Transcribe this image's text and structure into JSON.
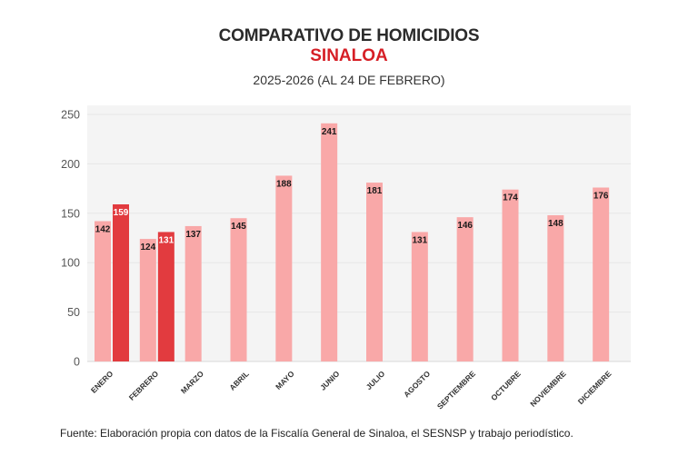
{
  "header": {
    "title": "COMPARATIVO DE HOMICIDIOS",
    "region": "SINALOA",
    "period": "2025-2026 (AL 24 DE FEBRERO)"
  },
  "footer": {
    "source": "Fuente: Elaboración propia con datos de la Fiscalía General de Sinaloa, el SESNSP y trabajo periodístico."
  },
  "colors": {
    "series_2025": "#f9a8a8",
    "series_2026": "#e23b3f",
    "plot_bg": "#f4f4f4",
    "grid": "#e6e6e6",
    "region_title": "#d61f26"
  },
  "chart_data": {
    "type": "bar",
    "title": "COMPARATIVO DE HOMICIDIOS",
    "subtitle": "SINALOA — 2025-2026 (AL 24 DE FEBRERO)",
    "xlabel": "",
    "ylabel": "",
    "ylim": [
      0,
      250
    ],
    "yticks": [
      0,
      50,
      100,
      150,
      200,
      250
    ],
    "grid": true,
    "legend": "none",
    "categories": [
      "ENERO",
      "FEBRERO",
      "MARZO",
      "ABRIL",
      "MAYO",
      "JUNIO",
      "JULIO",
      "AGOSTO",
      "SEPTIEMBRE",
      "OCTUBRE",
      "NOVIEMBRE",
      "DICIEMBRE"
    ],
    "series": [
      {
        "name": "2025",
        "values": [
          142,
          124,
          137,
          145,
          188,
          241,
          181,
          131,
          146,
          174,
          148,
          176
        ]
      },
      {
        "name": "2026",
        "values": [
          159,
          131,
          null,
          null,
          null,
          null,
          null,
          null,
          null,
          null,
          null,
          null
        ]
      }
    ]
  }
}
